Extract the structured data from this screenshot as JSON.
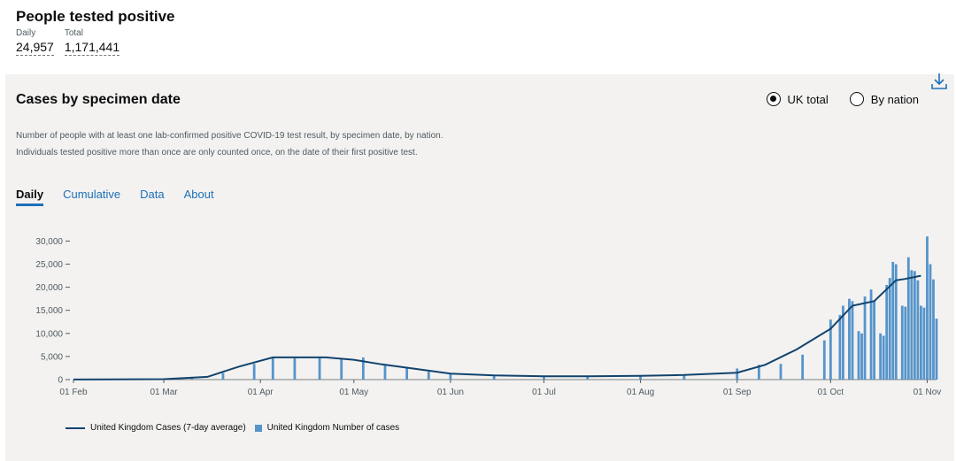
{
  "headline": {
    "title": "People tested positive",
    "daily_label": "Daily",
    "daily_value": "24,957",
    "total_label": "Total",
    "total_value": "1,171,441"
  },
  "card": {
    "title": "Cases by specimen date",
    "download_icon": "download-icon",
    "radio_uk_total": "UK total",
    "radio_by_nation": "By nation",
    "selected_radio": "UK total",
    "description": "Number of people with at least one lab-confirmed positive COVID-19 test result, by specimen date, by nation. Individuals tested positive more than once are only counted once, on the date of their first positive test.",
    "tabs": [
      "Daily",
      "Cumulative",
      "Data",
      "About"
    ],
    "active_tab": "Daily"
  },
  "colors": {
    "bar": "#5694ca",
    "line": "#12436d",
    "link": "#1d70b8",
    "card_bg": "#f3f2f1"
  },
  "chart_data": {
    "type": "bar",
    "title": "",
    "xlabel": "",
    "ylabel": "",
    "ylim": [
      0,
      32000
    ],
    "y_ticks": [
      0,
      5000,
      10000,
      15000,
      20000,
      25000,
      30000
    ],
    "y_tick_labels": [
      "0",
      "5,000",
      "10,000",
      "15,000",
      "20,000",
      "25,000",
      "30,000"
    ],
    "x_ticks": [
      "2020-02-01",
      "2020-03-01",
      "2020-04-01",
      "2020-05-01",
      "2020-06-01",
      "2020-07-01",
      "2020-08-01",
      "2020-09-01",
      "2020-10-01",
      "2020-11-01"
    ],
    "x_tick_labels": [
      "01 Feb",
      "01 Mar",
      "01 Apr",
      "01 May",
      "01 Jun",
      "01 Jul",
      "01 Aug",
      "01 Sep",
      "01 Oct",
      "01 Nov"
    ],
    "x_range": [
      "2020-02-01",
      "2020-11-04"
    ],
    "grid": false,
    "legend_position": "bottom-left",
    "series": [
      {
        "name": "United Kingdom Cases (7-day average)",
        "type": "line",
        "x": [
          "2020-02-01",
          "2020-03-01",
          "2020-03-15",
          "2020-03-25",
          "2020-04-05",
          "2020-04-12",
          "2020-04-22",
          "2020-05-01",
          "2020-05-10",
          "2020-05-20",
          "2020-06-01",
          "2020-06-15",
          "2020-07-01",
          "2020-07-15",
          "2020-08-01",
          "2020-08-15",
          "2020-09-01",
          "2020-09-10",
          "2020-09-20",
          "2020-10-01",
          "2020-10-08",
          "2020-10-15",
          "2020-10-22",
          "2020-10-25",
          "2020-10-30"
        ],
        "y": [
          10,
          100,
          600,
          2800,
          4800,
          4800,
          4800,
          4300,
          3300,
          2400,
          1300,
          900,
          700,
          700,
          800,
          1000,
          1500,
          3200,
          6500,
          11000,
          16000,
          17000,
          21500,
          21800,
          22500
        ]
      },
      {
        "name": "United Kingdom Number of cases",
        "type": "bar",
        "x": [
          "2020-02-01",
          "2020-03-01",
          "2020-03-10",
          "2020-03-20",
          "2020-03-30",
          "2020-04-05",
          "2020-04-12",
          "2020-04-20",
          "2020-04-27",
          "2020-05-04",
          "2020-05-11",
          "2020-05-18",
          "2020-05-25",
          "2020-06-01",
          "2020-06-15",
          "2020-07-01",
          "2020-07-15",
          "2020-08-01",
          "2020-08-15",
          "2020-09-01",
          "2020-09-08",
          "2020-09-15",
          "2020-09-22",
          "2020-09-29",
          "2020-10-01",
          "2020-10-04",
          "2020-10-05",
          "2020-10-07",
          "2020-10-08",
          "2020-10-10",
          "2020-10-11",
          "2020-10-12",
          "2020-10-14",
          "2020-10-15",
          "2020-10-17",
          "2020-10-18",
          "2020-10-19",
          "2020-10-20",
          "2020-10-21",
          "2020-10-22",
          "2020-10-24",
          "2020-10-25",
          "2020-10-26",
          "2020-10-27",
          "2020-10-28",
          "2020-10-29",
          "2020-10-30",
          "2020-10-31",
          "2020-11-01",
          "2020-11-02",
          "2020-11-03",
          "2020-11-04"
        ],
        "y": [
          10,
          100,
          300,
          1400,
          3400,
          4800,
          4600,
          4900,
          4400,
          4800,
          3300,
          2600,
          1700,
          1200,
          800,
          600,
          650,
          800,
          950,
          2400,
          3200,
          3400,
          5400,
          8500,
          13000,
          14000,
          16000,
          17500,
          17000,
          10500,
          10000,
          18000,
          19500,
          17000,
          10000,
          9500,
          20500,
          22000,
          25500,
          25000,
          16000,
          15800,
          26500,
          23700,
          23500,
          21500,
          16000,
          15600,
          31000,
          25000,
          21700,
          13200
        ]
      }
    ]
  }
}
